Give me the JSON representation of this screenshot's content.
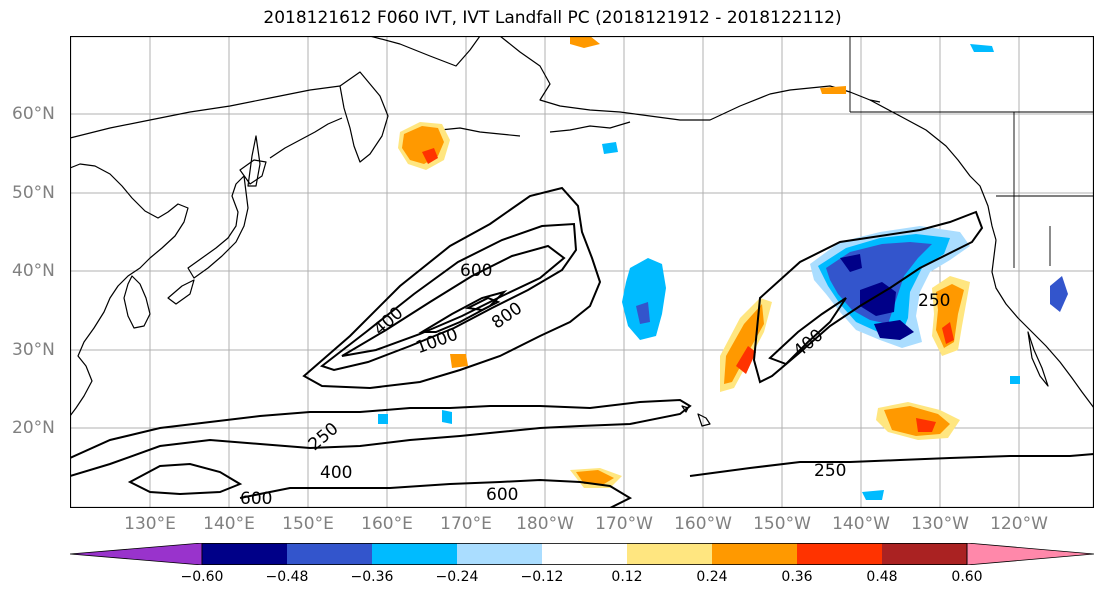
{
  "title": "2018121612 F060 IVT, IVT Landfall PC (2018121912 - 2018122112)",
  "map": {
    "lon_labels": [
      "130°E",
      "140°E",
      "150°E",
      "160°E",
      "170°E",
      "180°W",
      "170°W",
      "160°W",
      "150°W",
      "140°W",
      "130°W",
      "120°W"
    ],
    "lat_labels": [
      "60°N",
      "50°N",
      "40°N",
      "30°N",
      "20°N"
    ],
    "contour_labels": [
      "600",
      "400",
      "1000",
      "800",
      "250",
      "400",
      "250",
      "400",
      "250",
      "600",
      "600"
    ]
  },
  "colorbar": {
    "tick_labels": [
      "−0.60",
      "−0.48",
      "−0.36",
      "−0.24",
      "−0.12",
      "0.12",
      "0.24",
      "0.36",
      "0.48",
      "0.60"
    ],
    "colors": [
      "#9933cc",
      "#000088",
      "#3355cc",
      "#00bbff",
      "#aaddff",
      "#ffffff",
      "#ffe680",
      "#ff9900",
      "#ff3300",
      "#aa2222",
      "#ff88aa"
    ]
  },
  "colors": {
    "land_outline": "#000000",
    "grid": "#b0b0b0",
    "ivt_contour": "#000000"
  }
}
